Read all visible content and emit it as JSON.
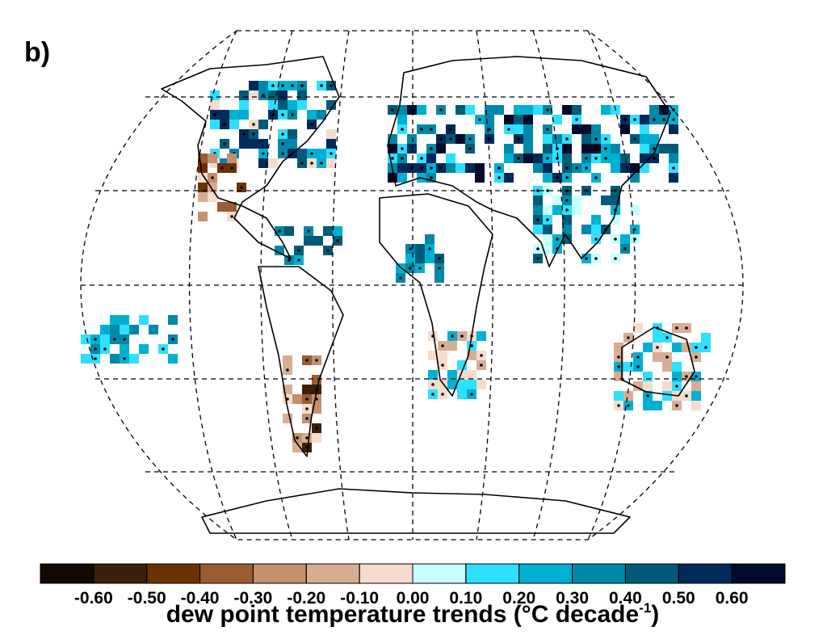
{
  "panel_label": "b)",
  "colorbar": {
    "label": "dew point temperature trends (°C decade",
    "label_superscript": "-1",
    "label_close": ")",
    "clim": [
      -0.7,
      0.7
    ],
    "colors": [
      "#140804",
      "#3b1f08",
      "#6a3200",
      "#9b5c32",
      "#c4906e",
      "#d8ae93",
      "#f5dccd",
      "#c8ffff",
      "#2ee0ff",
      "#00b0d2",
      "#0088a8",
      "#005a78",
      "#002a5a",
      "#000a2a"
    ],
    "ticks": [
      {
        "value": -0.6,
        "label": "-0.60"
      },
      {
        "value": -0.5,
        "label": "-0.50"
      },
      {
        "value": -0.4,
        "label": "-0.40"
      },
      {
        "value": -0.3,
        "label": "-0.30"
      },
      {
        "value": -0.2,
        "label": "-0.20"
      },
      {
        "value": -0.1,
        "label": "-0.10"
      },
      {
        "value": 0,
        "label": "0.00"
      },
      {
        "value": 0.1,
        "label": "0.10"
      },
      {
        "value": 0.2,
        "label": "0.20"
      },
      {
        "value": 0.3,
        "label": "0.30"
      },
      {
        "value": 0.4,
        "label": "0.40"
      },
      {
        "value": 0.5,
        "label": "0.50"
      },
      {
        "value": 0.6,
        "label": "0.60"
      }
    ]
  }
}
